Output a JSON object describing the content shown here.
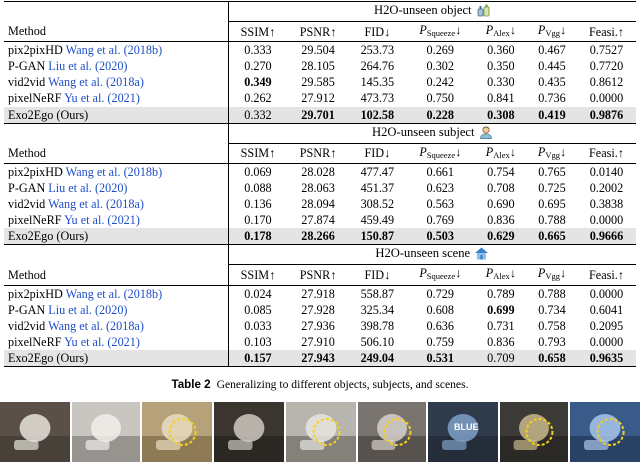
{
  "columns": [
    "Method",
    "SSIM↑",
    "PSNR↑",
    "FID↓",
    "P_Squeeze↓",
    "P_Alex↓",
    "P_Vgg↓",
    "Feasi.↑"
  ],
  "sections": [
    {
      "title": "H2O-unseen object",
      "icon": "bottle-icon",
      "rows": [
        {
          "method": "pix2pixHD",
          "cite": "Wang et al. (2018b)",
          "values": [
            "0.333",
            "29.504",
            "253.73",
            "0.269",
            "0.360",
            "0.467",
            "0.7527"
          ],
          "bold": []
        },
        {
          "method": "P-GAN",
          "cite": "Liu et al. (2020)",
          "values": [
            "0.270",
            "28.105",
            "264.76",
            "0.302",
            "0.350",
            "0.445",
            "0.7720"
          ],
          "bold": []
        },
        {
          "method": "vid2vid",
          "cite": "Wang et al. (2018a)",
          "values": [
            "0.349",
            "29.585",
            "145.35",
            "0.242",
            "0.330",
            "0.435",
            "0.8612"
          ],
          "bold": [
            0
          ]
        },
        {
          "method": "pixelNeRF",
          "cite": "Yu et al. (2021)",
          "values": [
            "0.262",
            "27.912",
            "473.73",
            "0.750",
            "0.841",
            "0.736",
            "0.0000"
          ],
          "bold": []
        },
        {
          "method": "Exo2Ego (Ours)",
          "cite": "",
          "ours": true,
          "values": [
            "0.332",
            "29.701",
            "102.58",
            "0.228",
            "0.308",
            "0.419",
            "0.9876"
          ],
          "bold": [
            1,
            2,
            3,
            4,
            5,
            6
          ]
        }
      ]
    },
    {
      "title": "H2O-unseen subject",
      "icon": "person-icon",
      "rows": [
        {
          "method": "pix2pixHD",
          "cite": "Wang et al. (2018b)",
          "values": [
            "0.069",
            "28.028",
            "477.47",
            "0.661",
            "0.754",
            "0.765",
            "0.0140"
          ],
          "bold": []
        },
        {
          "method": "P-GAN",
          "cite": "Liu et al. (2020)",
          "values": [
            "0.088",
            "28.063",
            "451.37",
            "0.623",
            "0.708",
            "0.725",
            "0.2002"
          ],
          "bold": []
        },
        {
          "method": "vid2vid",
          "cite": "Wang et al. (2018a)",
          "values": [
            "0.136",
            "28.094",
            "308.52",
            "0.563",
            "0.690",
            "0.695",
            "0.3838"
          ],
          "bold": []
        },
        {
          "method": "pixelNeRF",
          "cite": "Yu et al. (2021)",
          "values": [
            "0.170",
            "27.874",
            "459.49",
            "0.769",
            "0.836",
            "0.788",
            "0.0000"
          ],
          "bold": []
        },
        {
          "method": "Exo2Ego (Ours)",
          "cite": "",
          "ours": true,
          "values": [
            "0.178",
            "28.266",
            "150.87",
            "0.503",
            "0.629",
            "0.665",
            "0.9666"
          ],
          "bold": [
            0,
            1,
            2,
            3,
            4,
            5,
            6
          ]
        }
      ]
    },
    {
      "title": "H2O-unseen scene",
      "icon": "house-icon",
      "rows": [
        {
          "method": "pix2pixHD",
          "cite": "Wang et al. (2018b)",
          "values": [
            "0.024",
            "27.918",
            "558.87",
            "0.729",
            "0.789",
            "0.788",
            "0.0000"
          ],
          "bold": []
        },
        {
          "method": "P-GAN",
          "cite": "Liu et al. (2020)",
          "values": [
            "0.085",
            "27.928",
            "325.34",
            "0.608",
            "0.699",
            "0.734",
            "0.6041"
          ],
          "bold": [
            4
          ]
        },
        {
          "method": "vid2vid",
          "cite": "Wang et al. (2018a)",
          "values": [
            "0.033",
            "27.936",
            "398.78",
            "0.636",
            "0.731",
            "0.758",
            "0.2095"
          ],
          "bold": []
        },
        {
          "method": "pixelNeRF",
          "cite": "Yu et al. (2021)",
          "values": [
            "0.103",
            "27.910",
            "506.10",
            "0.759",
            "0.836",
            "0.793",
            "0.0000"
          ],
          "bold": []
        },
        {
          "method": "Exo2Ego (Ours)",
          "cite": "",
          "ours": true,
          "values": [
            "0.157",
            "27.943",
            "249.04",
            "0.531",
            "0.709",
            "0.658",
            "0.9635"
          ],
          "bold": [
            0,
            1,
            2,
            3,
            5,
            6
          ]
        }
      ]
    }
  ],
  "caption": {
    "label": "Table 2",
    "text": "Generalizing to different objects, subjects, and scenes."
  },
  "strip_icons": [
    "photo-thumbnail-icon"
  ],
  "strip_text": "BLUE"
}
